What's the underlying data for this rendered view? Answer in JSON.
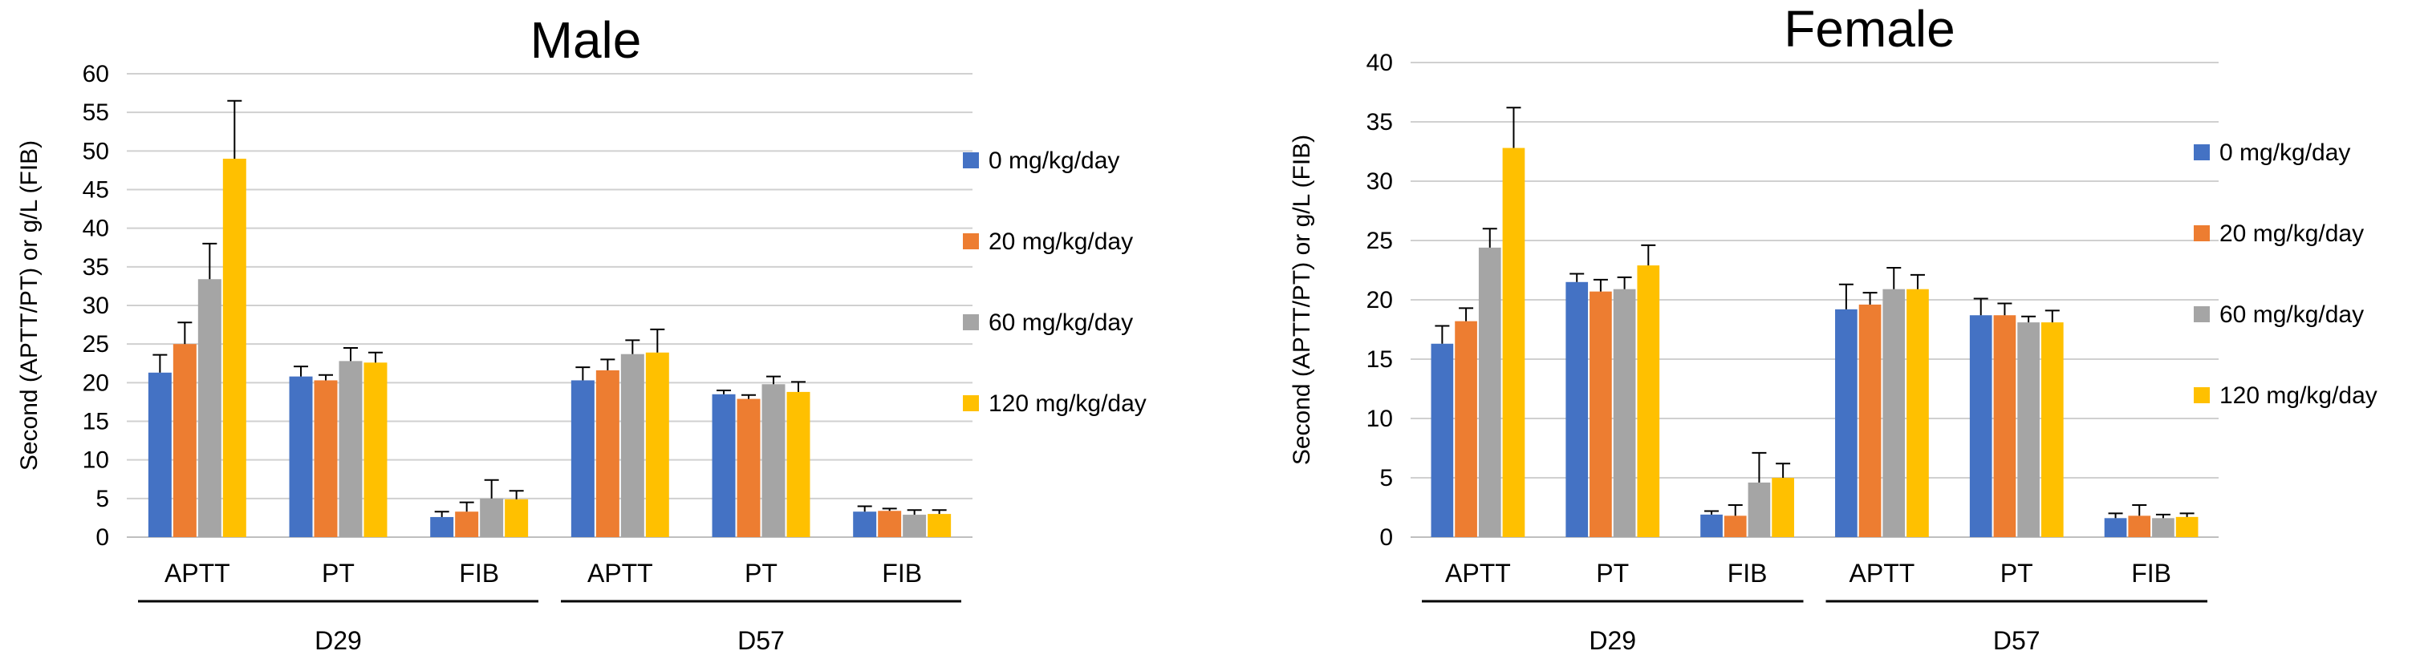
{
  "figure": {
    "panels": [
      "Male",
      "Female"
    ]
  },
  "chart_data": [
    {
      "type": "bar",
      "title": "Male",
      "ylabel": "Second (APTT/PT) or g/L (FIB)",
      "xlabel": "",
      "ylim": [
        0,
        60
      ],
      "yticks": [
        0,
        5,
        10,
        15,
        20,
        25,
        30,
        35,
        40,
        45,
        50,
        55,
        60
      ],
      "grid": true,
      "legend_position": "right",
      "groups": [
        {
          "label": "D29",
          "categories": [
            "APTT",
            "PT",
            "FIB"
          ]
        },
        {
          "label": "D57",
          "categories": [
            "APTT",
            "PT",
            "FIB"
          ]
        }
      ],
      "categories": [
        "APTT",
        "PT",
        "FIB",
        "APTT",
        "PT",
        "FIB"
      ],
      "series": [
        {
          "name": "0 mg/kg/day",
          "color": "#4472C4",
          "values": [
            21.3,
            20.8,
            2.6,
            20.3,
            18.5,
            3.3
          ],
          "errors": [
            2.3,
            1.3,
            0.7,
            1.7,
            0.5,
            0.7
          ]
        },
        {
          "name": "20 mg/kg/day",
          "color": "#ED7D31",
          "values": [
            25.0,
            20.3,
            3.3,
            21.6,
            17.9,
            3.4
          ],
          "errors": [
            2.8,
            0.7,
            1.2,
            1.4,
            0.5,
            0.3
          ]
        },
        {
          "name": "60 mg/kg/day",
          "color": "#A5A5A5",
          "values": [
            33.4,
            22.8,
            5.0,
            23.7,
            19.8,
            2.9
          ],
          "errors": [
            4.6,
            1.7,
            2.4,
            1.8,
            1.0,
            0.6
          ]
        },
        {
          "name": "120 mg/kg/day",
          "color": "#FFC000",
          "values": [
            49.0,
            22.6,
            4.9,
            23.9,
            18.8,
            3.0
          ],
          "errors": [
            7.5,
            1.3,
            1.1,
            3.0,
            1.3,
            0.5
          ]
        }
      ]
    },
    {
      "type": "bar",
      "title": "Female",
      "ylabel": "Second (APTT/PT) or g/L (FIB)",
      "xlabel": "",
      "ylim": [
        0,
        40
      ],
      "yticks": [
        0,
        5,
        10,
        15,
        20,
        25,
        30,
        35,
        40
      ],
      "grid": true,
      "legend_position": "right",
      "groups": [
        {
          "label": "D29",
          "categories": [
            "APTT",
            "PT",
            "FIB"
          ]
        },
        {
          "label": "D57",
          "categories": [
            "APTT",
            "PT",
            "FIB"
          ]
        }
      ],
      "categories": [
        "APTT",
        "PT",
        "FIB",
        "APTT",
        "PT",
        "FIB"
      ],
      "series": [
        {
          "name": "0 mg/kg/day",
          "color": "#4472C4",
          "values": [
            16.3,
            21.5,
            1.9,
            19.2,
            18.7,
            1.6
          ],
          "errors": [
            1.5,
            0.7,
            0.3,
            2.1,
            1.4,
            0.4
          ]
        },
        {
          "name": "20 mg/kg/day",
          "color": "#ED7D31",
          "values": [
            18.2,
            20.7,
            1.8,
            19.6,
            18.7,
            1.8
          ],
          "errors": [
            1.1,
            1.0,
            0.9,
            1.0,
            1.0,
            0.9
          ]
        },
        {
          "name": "60 mg/kg/day",
          "color": "#A5A5A5",
          "values": [
            24.4,
            20.9,
            4.6,
            20.9,
            18.1,
            1.6
          ],
          "errors": [
            1.6,
            1.0,
            2.5,
            1.8,
            0.5,
            0.3
          ]
        },
        {
          "name": "120 mg/kg/day",
          "color": "#FFC000",
          "values": [
            32.8,
            22.9,
            5.0,
            20.9,
            18.1,
            1.7
          ],
          "errors": [
            3.4,
            1.7,
            1.2,
            1.2,
            1.0,
            0.3
          ]
        }
      ]
    }
  ]
}
